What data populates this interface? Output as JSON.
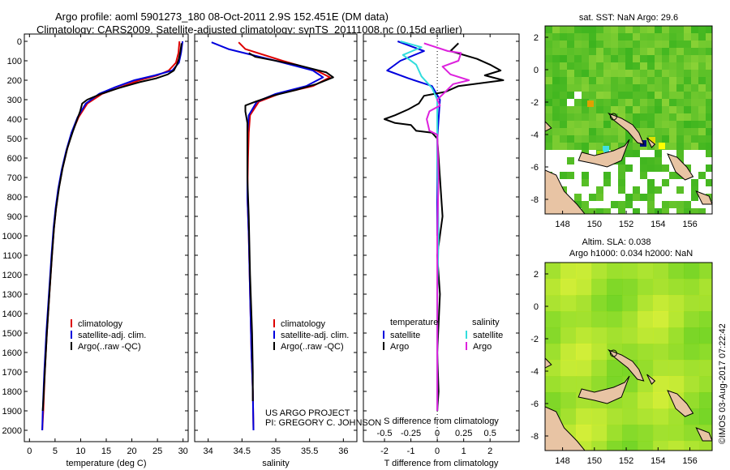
{
  "header": {
    "line1": "Argo profile: aoml 5901273_180 08-Oct-2011 2.9S 152.451E (DM data)",
    "line2": "Climatology: CARS2009. Satellite-adjusted climatology: synTS_20111008.nc (0.15d earlier)"
  },
  "chart_data": [
    {
      "type": "line",
      "name": "temperature-profile",
      "xlabel": "temperature (deg C)",
      "ylabel": "",
      "xlim": [
        -1,
        31
      ],
      "ylim": [
        2100,
        0
      ],
      "xticks": [
        0,
        5,
        10,
        15,
        20,
        25,
        30
      ],
      "yticks": [
        0,
        100,
        200,
        300,
        400,
        500,
        600,
        700,
        800,
        900,
        1000,
        1100,
        1200,
        1300,
        1400,
        1500,
        1600,
        1700,
        1800,
        1900,
        2000
      ],
      "legend": [
        "climatology",
        "satellite-adj. clim.",
        "Argo(..raw -QC)"
      ],
      "series": [
        {
          "name": "climatology",
          "color": "#dd0000",
          "points": [
            [
              29.3,
              0
            ],
            [
              29.1,
              60
            ],
            [
              28.6,
              110
            ],
            [
              27.2,
              150
            ],
            [
              25.0,
              175
            ],
            [
              21.5,
              200
            ],
            [
              17.8,
              235
            ],
            [
              14.2,
              270
            ],
            [
              11.3,
              320
            ],
            [
              9.6,
              390
            ],
            [
              8.3,
              470
            ],
            [
              7.3,
              560
            ],
            [
              6.4,
              660
            ],
            [
              5.7,
              760
            ],
            [
              5.2,
              860
            ],
            [
              4.8,
              960
            ],
            [
              4.4,
              1100
            ],
            [
              3.9,
              1300
            ],
            [
              3.4,
              1500
            ],
            [
              3.0,
              1700
            ],
            [
              2.7,
              1900
            ],
            [
              2.5,
              2000
            ]
          ]
        },
        {
          "name": "satellite-adj. clim.",
          "color": "#0000dd",
          "points": [
            [
              29.9,
              0
            ],
            [
              29.6,
              60
            ],
            [
              29.2,
              110
            ],
            [
              27.9,
              150
            ],
            [
              24.5,
              175
            ],
            [
              20.5,
              200
            ],
            [
              16.8,
              235
            ],
            [
              13.6,
              270
            ],
            [
              11.0,
              320
            ],
            [
              9.4,
              390
            ],
            [
              8.2,
              470
            ],
            [
              7.2,
              560
            ],
            [
              6.3,
              660
            ],
            [
              5.6,
              760
            ],
            [
              5.1,
              860
            ],
            [
              4.7,
              960
            ],
            [
              4.3,
              1100
            ],
            [
              3.8,
              1300
            ],
            [
              3.3,
              1500
            ],
            [
              2.9,
              1700
            ],
            [
              2.6,
              1900
            ],
            [
              2.5,
              2000
            ]
          ]
        },
        {
          "name": "Argo",
          "color": "#000000",
          "points": [
            [
              29.7,
              10
            ],
            [
              29.5,
              50
            ],
            [
              29.2,
              90
            ],
            [
              28.8,
              120
            ],
            [
              28.2,
              150
            ],
            [
              27.0,
              170
            ],
            [
              24.8,
              190
            ],
            [
              21.5,
              210
            ],
            [
              17.5,
              240
            ],
            [
              14.0,
              270
            ],
            [
              11.3,
              300
            ],
            [
              10.3,
              320
            ],
            [
              9.9,
              360
            ],
            [
              9.2,
              410
            ],
            [
              8.4,
              470
            ],
            [
              7.4,
              550
            ],
            [
              6.5,
              650
            ],
            [
              5.8,
              750
            ],
            [
              5.2,
              860
            ],
            [
              4.8,
              960
            ],
            [
              4.4,
              1100
            ],
            [
              3.9,
              1300
            ],
            [
              3.4,
              1500
            ],
            [
              3.0,
              1700
            ],
            [
              2.7,
              1850
            ],
            [
              2.6,
              1900
            ]
          ]
        }
      ]
    },
    {
      "type": "line",
      "name": "salinity-profile",
      "xlabel": "salinity",
      "ylabel": "",
      "xlim": [
        33.8,
        36.2
      ],
      "ylim": [
        2100,
        0
      ],
      "xticks": [
        34,
        34.5,
        35,
        35.5,
        36
      ],
      "legend": [
        "climatology",
        "satellite-adj. clim.",
        "Argo(..raw -QC)"
      ],
      "series": [
        {
          "name": "climatology",
          "color": "#dd0000",
          "points": [
            [
              34.45,
              5
            ],
            [
              34.55,
              40
            ],
            [
              35.1,
              100
            ],
            [
              35.6,
              150
            ],
            [
              35.8,
              185
            ],
            [
              35.55,
              230
            ],
            [
              35.05,
              270
            ],
            [
              34.75,
              310
            ],
            [
              34.62,
              380
            ],
            [
              34.6,
              470
            ],
            [
              34.59,
              600
            ],
            [
              34.58,
              800
            ],
            [
              34.6,
              1000
            ],
            [
              34.62,
              1300
            ],
            [
              34.64,
              1600
            ],
            [
              34.66,
              1800
            ],
            [
              34.67,
              2000
            ]
          ]
        },
        {
          "name": "satellite-adj. clim.",
          "color": "#0000dd",
          "points": [
            [
              34.05,
              5
            ],
            [
              34.3,
              40
            ],
            [
              35.0,
              100
            ],
            [
              35.55,
              150
            ],
            [
              35.7,
              185
            ],
            [
              35.45,
              230
            ],
            [
              35.0,
              270
            ],
            [
              34.72,
              310
            ],
            [
              34.6,
              380
            ],
            [
              34.58,
              470
            ],
            [
              34.58,
              600
            ],
            [
              34.58,
              800
            ],
            [
              34.6,
              1000
            ],
            [
              34.62,
              1300
            ],
            [
              34.64,
              1600
            ],
            [
              34.66,
              1800
            ],
            [
              34.67,
              2000
            ]
          ]
        },
        {
          "name": "Argo",
          "color": "#000000",
          "points": [
            [
              34.6,
              60
            ],
            [
              34.7,
              80
            ],
            [
              35.3,
              120
            ],
            [
              35.75,
              160
            ],
            [
              35.85,
              185
            ],
            [
              35.6,
              220
            ],
            [
              35.3,
              250
            ],
            [
              34.95,
              280
            ],
            [
              34.7,
              310
            ],
            [
              34.55,
              330
            ],
            [
              34.55,
              360
            ],
            [
              34.58,
              420
            ],
            [
              34.58,
              500
            ],
            [
              34.58,
              700
            ],
            [
              34.6,
              900
            ],
            [
              34.62,
              1200
            ],
            [
              34.65,
              1500
            ],
            [
              34.66,
              1700
            ],
            [
              34.66,
              1850
            ]
          ]
        }
      ]
    },
    {
      "type": "line",
      "name": "difference-profile",
      "xlabel": "T difference from climatology",
      "xlabel_top": "S difference from climatology",
      "xlim": [
        -2.8,
        3.1
      ],
      "ylim": [
        2100,
        0
      ],
      "xticks": [
        -2,
        -1,
        0,
        1,
        2
      ],
      "xticks_secondary": [
        "-0.5",
        "-0.25",
        "0",
        "0.25",
        "0.5"
      ],
      "legend": {
        "temperature": [
          "satellite",
          "Argo"
        ],
        "salinity": [
          "satellite",
          "Argo"
        ]
      },
      "series": [
        {
          "name": "temperature satellite",
          "color": "#0000dd",
          "points": [
            [
              -1.5,
              0
            ],
            [
              -0.5,
              50
            ],
            [
              -1.4,
              100
            ],
            [
              -1.9,
              150
            ],
            [
              -1.1,
              190
            ],
            [
              -0.2,
              230
            ],
            [
              0.1,
              300
            ],
            [
              0.0,
              500
            ],
            [
              0.0,
              1000
            ]
          ]
        },
        {
          "name": "temperature Argo",
          "color": "#000000",
          "points": [
            [
              0.8,
              10
            ],
            [
              0.5,
              50
            ],
            [
              1.5,
              90
            ],
            [
              2.0,
              120
            ],
            [
              2.4,
              150
            ],
            [
              1.8,
              175
            ],
            [
              2.5,
              200
            ],
            [
              0.8,
              230
            ],
            [
              0.3,
              260
            ],
            [
              -0.5,
              280
            ],
            [
              -0.7,
              320
            ],
            [
              -1.1,
              350
            ],
            [
              -1.6,
              380
            ],
            [
              -2.0,
              400
            ],
            [
              -1.6,
              420
            ],
            [
              -1.0,
              430
            ],
            [
              -0.8,
              460
            ],
            [
              -0.2,
              470
            ],
            [
              0.0,
              500
            ],
            [
              0.1,
              700
            ],
            [
              0.2,
              900
            ],
            [
              0.0,
              1100
            ],
            [
              0.1,
              1300
            ],
            [
              0.0,
              1600
            ],
            [
              0.05,
              1800
            ],
            [
              0.0,
              1900
            ]
          ]
        },
        {
          "name": "salinity satellite",
          "color": "#33dddd",
          "points": [
            [
              -1.4,
              0
            ],
            [
              -0.6,
              30
            ],
            [
              -1.3,
              70
            ],
            [
              -0.8,
              120
            ],
            [
              -0.6,
              180
            ],
            [
              -0.2,
              240
            ],
            [
              0.0,
              300
            ],
            [
              0.0,
              600
            ],
            [
              0.05,
              1000
            ],
            [
              0.0,
              1300
            ],
            [
              0.0,
              1600
            ],
            [
              0.0,
              1900
            ]
          ]
        },
        {
          "name": "salinity Argo",
          "color": "#dd22dd",
          "points": [
            [
              -0.5,
              10
            ],
            [
              0.4,
              50
            ],
            [
              0.9,
              60
            ],
            [
              0.8,
              100
            ],
            [
              0.2,
              130
            ],
            [
              0.5,
              170
            ],
            [
              1.2,
              200
            ],
            [
              0.6,
              220
            ],
            [
              0.3,
              260
            ],
            [
              0.0,
              300
            ],
            [
              0.1,
              330
            ],
            [
              -0.3,
              360
            ],
            [
              -0.4,
              400
            ],
            [
              -0.3,
              460
            ],
            [
              0.0,
              480
            ],
            [
              0.05,
              700
            ],
            [
              0.0,
              1000
            ],
            [
              0.0,
              1200
            ],
            [
              0.0,
              1600
            ],
            [
              0.0,
              1900
            ]
          ]
        }
      ]
    }
  ],
  "maps": {
    "sst": {
      "title": "sat. SST: NaN Argo: 29.6",
      "xticks": [
        "148",
        "150",
        "152",
        "154",
        "156"
      ],
      "yticks": [
        "2",
        "0",
        "-2",
        "-4",
        "-6",
        "-8"
      ]
    },
    "sla": {
      "title_line1": "Altim. SLA: 0.038",
      "title_line2": "Argo h1000: 0.034 h2000: NaN",
      "xticks": [
        "148",
        "150",
        "152",
        "154",
        "156"
      ],
      "yticks": [
        "2",
        "0",
        "-2",
        "-4",
        "-6",
        "-8"
      ]
    }
  },
  "annotations": {
    "project_line1": "US ARGO PROJECT",
    "project_line2": "PI: GREGORY C. JOHNSON",
    "imos": "©IMOS 03-Aug-2017 07:22:42",
    "temperature_heading": "temperature",
    "salinity_heading": "salinity"
  },
  "colors": {
    "climatology": "#dd0000",
    "satellite": "#0000dd",
    "argo": "#000000",
    "sal_satellite": "#33dddd",
    "sal_argo": "#dd22dd",
    "land": "#e8c4a4"
  }
}
